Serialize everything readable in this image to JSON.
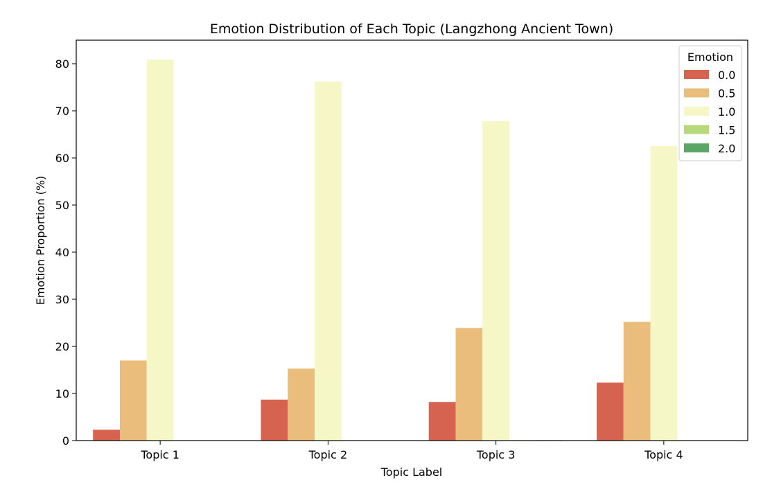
{
  "chart_data": {
    "type": "bar",
    "title": "Emotion Distribution of Each Topic (Langzhong Ancient Town)",
    "xlabel": "Topic Label",
    "ylabel": "Emotion Proportion (%)",
    "categories": [
      "Topic 1",
      "Topic 2",
      "Topic 3",
      "Topic 4"
    ],
    "ylim": [
      0,
      85
    ],
    "yticks": [
      "0",
      "10",
      "20",
      "30",
      "40",
      "50",
      "60",
      "70",
      "80"
    ],
    "legend": {
      "title": "Emotion",
      "position": "top-right"
    },
    "grid": false,
    "series": [
      {
        "name": "0.0",
        "color": "#d6634f",
        "values": [
          2.3,
          8.7,
          8.2,
          12.3
        ]
      },
      {
        "name": "0.5",
        "color": "#ebbd7d",
        "values": [
          17.0,
          15.3,
          23.9,
          25.2
        ]
      },
      {
        "name": "1.0",
        "color": "#f5f7c6",
        "values": [
          80.9,
          76.2,
          67.8,
          62.5
        ]
      },
      {
        "name": "1.5",
        "color": "#b8d87c",
        "values": [
          0,
          0,
          0.1,
          0
        ]
      },
      {
        "name": "2.0",
        "color": "#5aa666",
        "values": [
          0,
          0,
          0.1,
          0
        ]
      }
    ]
  }
}
